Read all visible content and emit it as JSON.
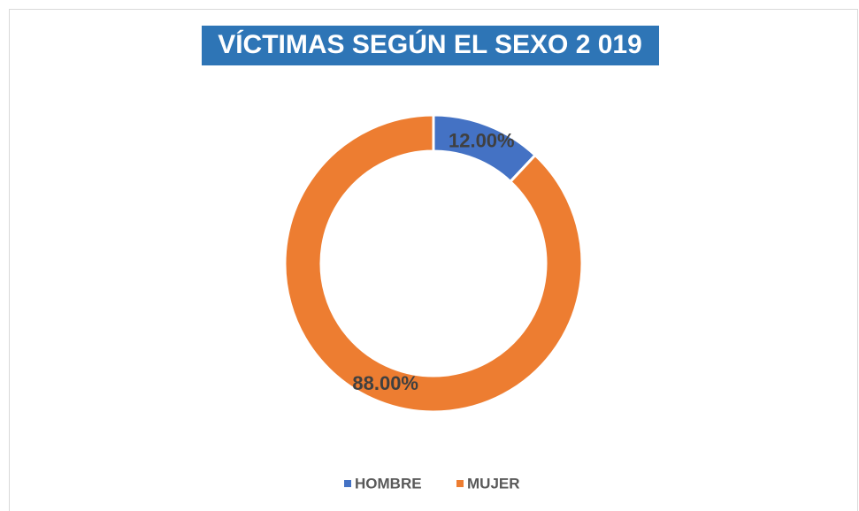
{
  "chart_data": {
    "type": "donut",
    "title": "VÍCTIMAS SEGÚN EL SEXO 2 019",
    "categories": [
      "HOMBRE",
      "MUJER"
    ],
    "values": [
      12,
      88
    ],
    "value_labels": [
      "12.00%",
      "88.00%"
    ],
    "colors": [
      "#4472c4",
      "#ed7d31"
    ],
    "legend": "bottom"
  }
}
